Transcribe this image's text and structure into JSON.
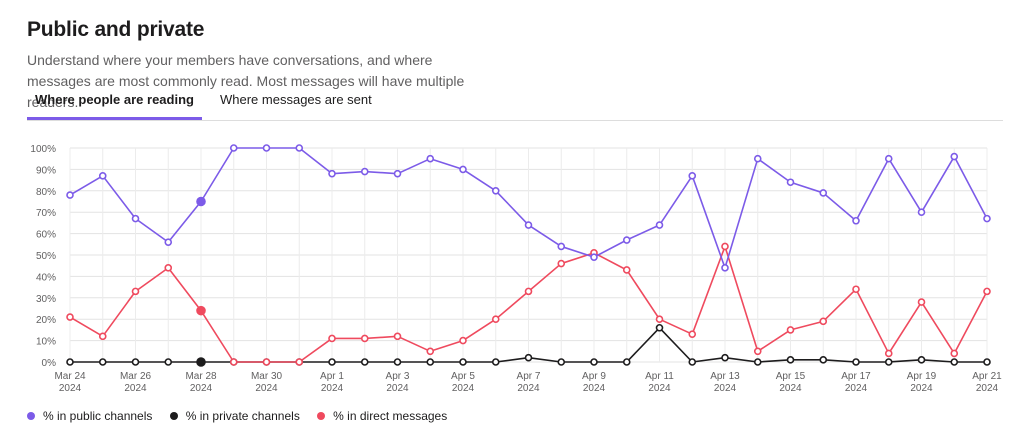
{
  "page": {
    "title": "Public and private",
    "subtitle": "Understand where your members have conversations, and where messages are most commonly read. Most messages will have multiple readers."
  },
  "tabs": [
    {
      "label": "Where people are reading",
      "active": true
    },
    {
      "label": "Where messages are sent",
      "active": false
    }
  ],
  "chart_data": {
    "type": "line",
    "x": [
      "2024-03-24",
      "2024-03-25",
      "2024-03-26",
      "2024-03-27",
      "2024-03-28",
      "2024-03-29",
      "2024-03-30",
      "2024-03-31",
      "2024-04-01",
      "2024-04-02",
      "2024-04-03",
      "2024-04-04",
      "2024-04-05",
      "2024-04-06",
      "2024-04-07",
      "2024-04-08",
      "2024-04-09",
      "2024-04-10",
      "2024-04-11",
      "2024-04-12",
      "2024-04-13",
      "2024-04-14",
      "2024-04-15",
      "2024-04-16",
      "2024-04-17",
      "2024-04-18",
      "2024-04-19",
      "2024-04-20",
      "2024-04-21"
    ],
    "x_ticks": [
      {
        "index": 0,
        "line1": "Mar 24",
        "line2": "2024"
      },
      {
        "index": 2,
        "line1": "Mar 26",
        "line2": "2024"
      },
      {
        "index": 4,
        "line1": "Mar 28",
        "line2": "2024"
      },
      {
        "index": 6,
        "line1": "Mar 30",
        "line2": "2024"
      },
      {
        "index": 8,
        "line1": "Apr 1",
        "line2": "2024"
      },
      {
        "index": 10,
        "line1": "Apr 3",
        "line2": "2024"
      },
      {
        "index": 12,
        "line1": "Apr 5",
        "line2": "2024"
      },
      {
        "index": 14,
        "line1": "Apr 7",
        "line2": "2024"
      },
      {
        "index": 16,
        "line1": "Apr 9",
        "line2": "2024"
      },
      {
        "index": 18,
        "line1": "Apr 11",
        "line2": "2024"
      },
      {
        "index": 20,
        "line1": "Apr 13",
        "line2": "2024"
      },
      {
        "index": 22,
        "line1": "Apr 15",
        "line2": "2024"
      },
      {
        "index": 24,
        "line1": "Apr 17",
        "line2": "2024"
      },
      {
        "index": 26,
        "line1": "Apr 19",
        "line2": "2024"
      },
      {
        "index": 28,
        "line1": "Apr 21",
        "line2": "2024"
      }
    ],
    "y_ticks": [
      "0%",
      "10%",
      "20%",
      "30%",
      "40%",
      "50%",
      "60%",
      "70%",
      "80%",
      "90%",
      "100%"
    ],
    "ylim": [
      0,
      100
    ],
    "grid": true,
    "legend_position": "bottom-left",
    "highlighted_index": 4,
    "series": [
      {
        "name": "% in public channels",
        "color": "#7c5be8",
        "values": [
          78,
          87,
          67,
          56,
          75,
          100,
          100,
          100,
          88,
          89,
          88,
          95,
          90,
          80,
          64,
          54,
          49,
          57,
          64,
          87,
          44,
          95,
          84,
          79,
          66,
          95,
          70,
          96,
          67
        ]
      },
      {
        "name": "% in private channels",
        "color": "#1d1c1d",
        "values": [
          0,
          0,
          0,
          0,
          0,
          0,
          0,
          0,
          0,
          0,
          0,
          0,
          0,
          0,
          2,
          0,
          0,
          0,
          16,
          0,
          2,
          0,
          1,
          1,
          0,
          0,
          1,
          0,
          0
        ]
      },
      {
        "name": "% in direct messages",
        "color": "#ef4a5e",
        "values": [
          21,
          12,
          33,
          44,
          24,
          0,
          0,
          0,
          11,
          11,
          12,
          5,
          10,
          20,
          33,
          46,
          51,
          43,
          20,
          13,
          54,
          5,
          15,
          19,
          34,
          4,
          28,
          4,
          33
        ]
      }
    ]
  }
}
